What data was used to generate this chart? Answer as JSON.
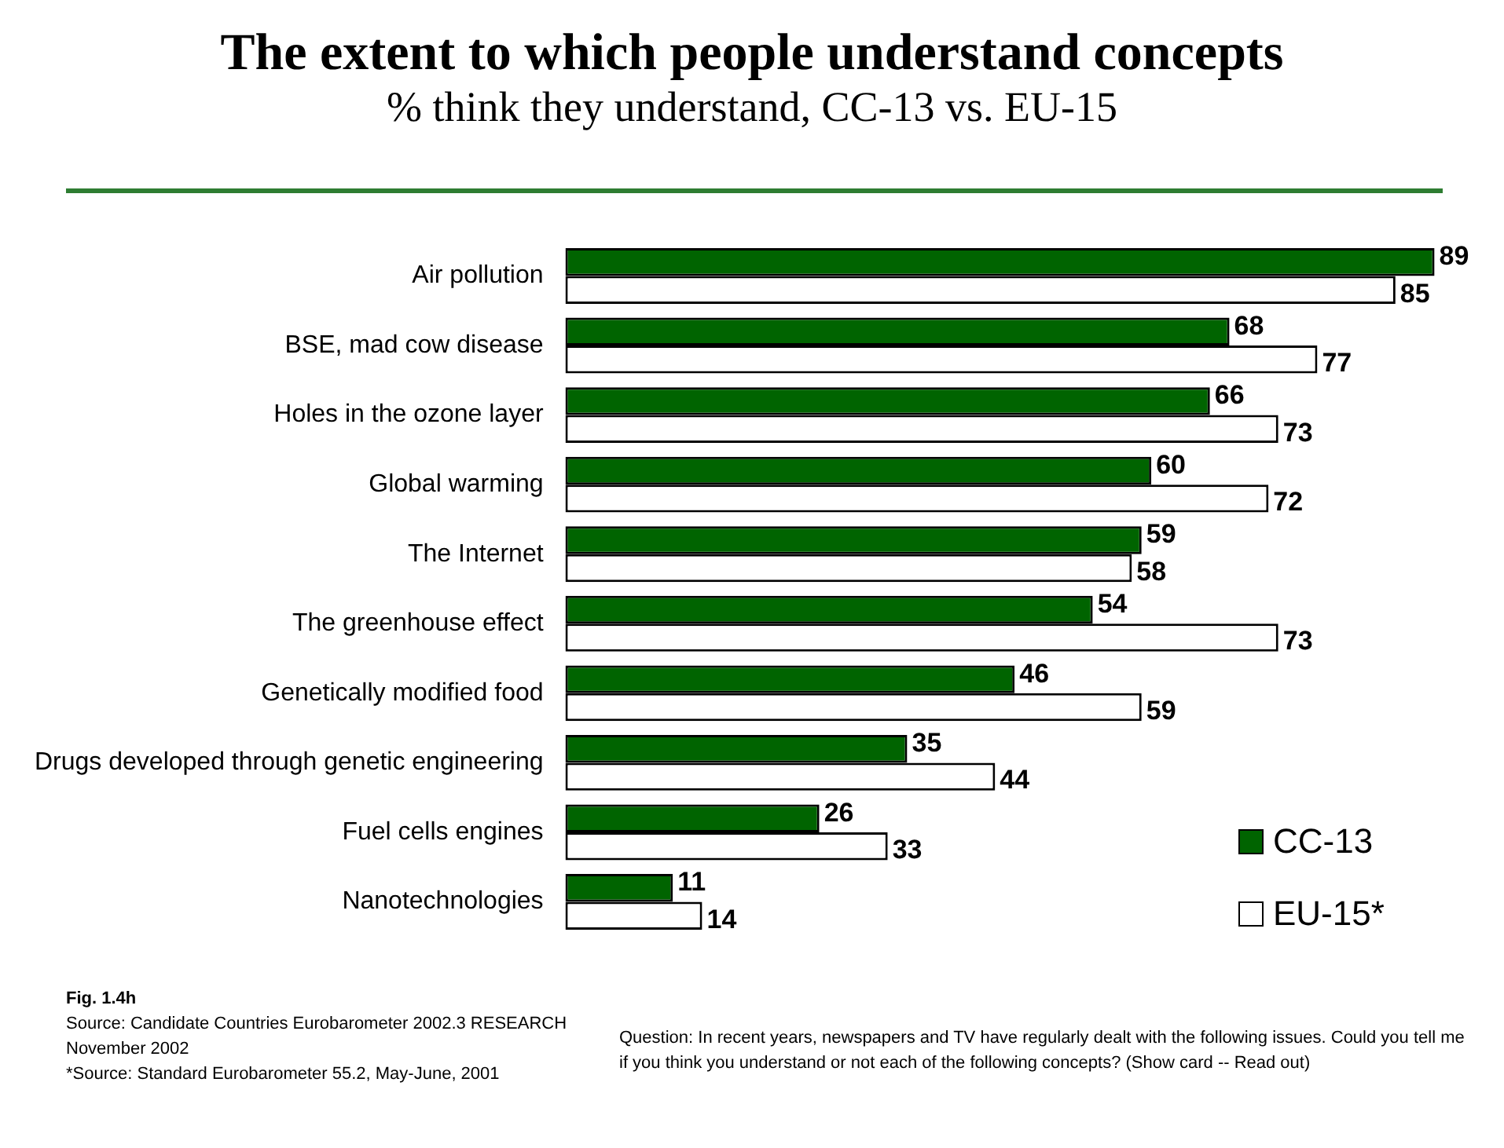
{
  "chart_data": {
    "type": "bar",
    "orientation": "horizontal",
    "title": "The extent to which people understand concepts",
    "subtitle": "% think they understand, CC-13 vs. EU-15",
    "categories": [
      "Air pollution",
      "BSE, mad cow disease",
      "Holes in the ozone layer",
      "Global warming",
      "The Internet",
      "The greenhouse effect",
      "Genetically modified food",
      "Drugs developed through genetic engineering",
      "Fuel cells engines",
      "Nanotechnologies"
    ],
    "series": [
      {
        "name": "CC-13",
        "color": "#006400",
        "values": [
          89,
          68,
          66,
          60,
          59,
          54,
          46,
          35,
          26,
          11
        ]
      },
      {
        "name": "EU-15*",
        "color": "#ffffff",
        "values": [
          85,
          77,
          73,
          72,
          58,
          73,
          59,
          44,
          33,
          14
        ]
      }
    ],
    "tick_labels": "y",
    "grid": false,
    "legend": "bottom right",
    "data_labels": true,
    "annotations": [
      "Fig. 1.4h",
      "Source: Candidate Countries Eurobarometer 2002.3 RESEARCH November 2002",
      "*Source: Standard Eurobarometer 55.2, May-June, 2001",
      "Question: In recent years, newspapers and TV have regularly dealt with the following issues. Could you tell me if you think you understand or not each of the following concepts? (Show card -- Read out)"
    ]
  }
}
